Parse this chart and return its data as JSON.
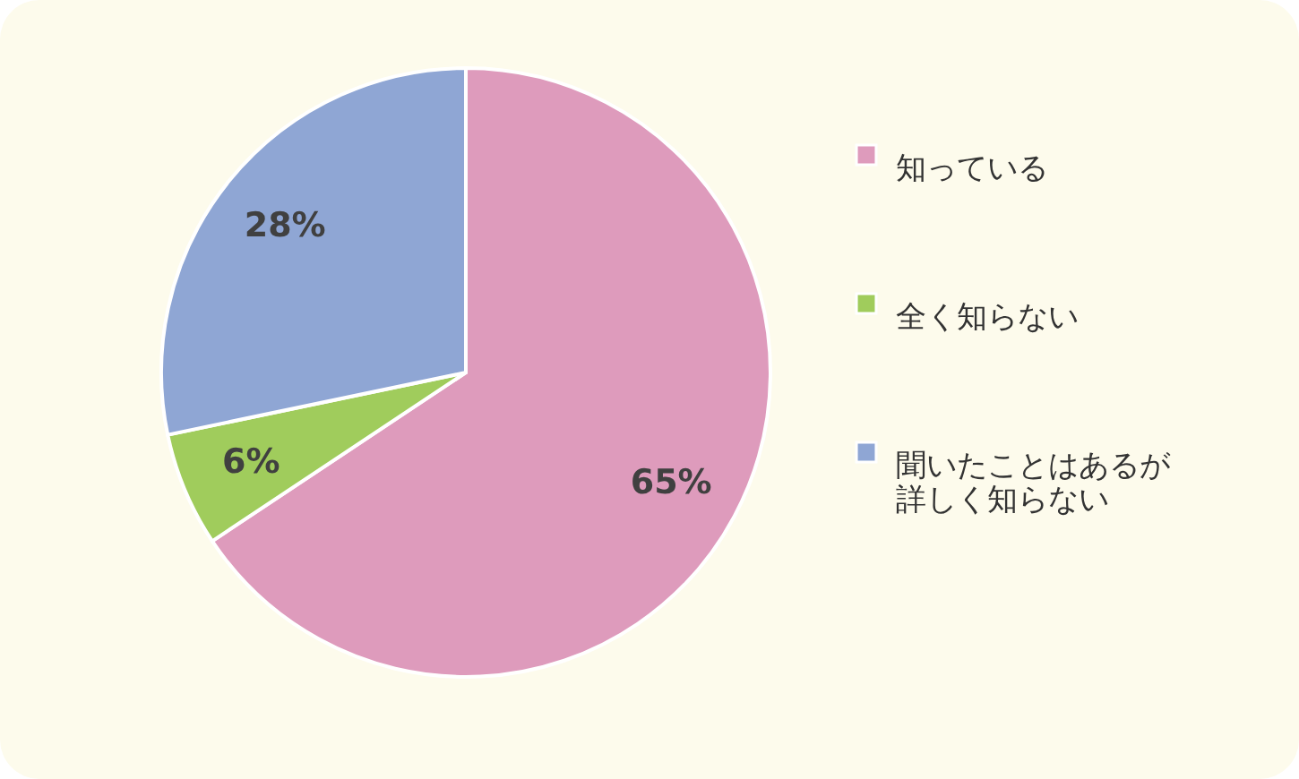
{
  "chart_data": {
    "type": "pie",
    "categories": [
      "知っている",
      "全く知らない",
      "聞いたことはあるが詳しく知らない"
    ],
    "values": [
      65,
      6,
      28
    ],
    "value_labels": [
      "65%",
      "6%",
      "28%"
    ],
    "colors": [
      "#de9bbc",
      "#a0cc5c",
      "#8fa6d4"
    ],
    "legend": "right"
  }
}
